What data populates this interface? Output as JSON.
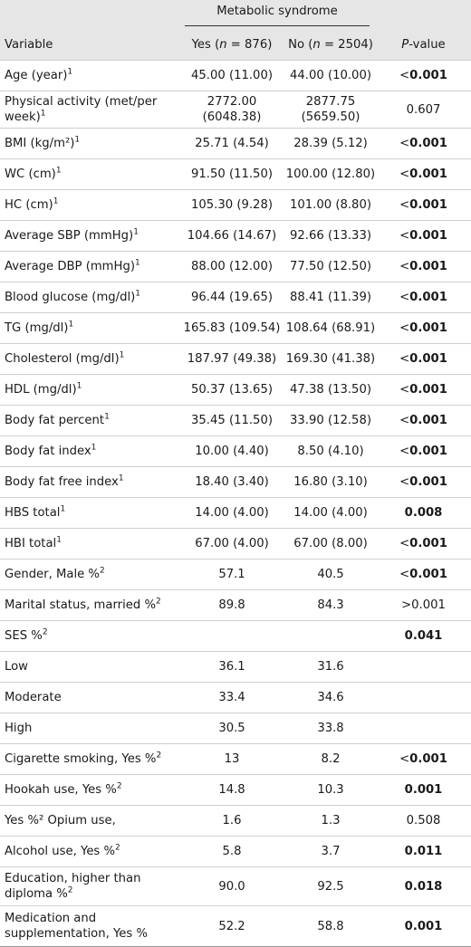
{
  "header": {
    "group_label": "Metabolic syndrome",
    "variable_label": "Variable",
    "yes_label_prefix": "Yes (",
    "yes_n_var": "n",
    "yes_label_suffix": " = 876)",
    "no_label_prefix": "No (",
    "no_n_var": "n",
    "no_label_suffix": " = 2504)",
    "p_italic": "P",
    "p_rest": "-value"
  },
  "rows": [
    {
      "label": "Age (year)",
      "sup": "1",
      "yes": "45.00 (11.00)",
      "no": "44.00 (10.00)",
      "p_sign": "<",
      "p_val": "0.001",
      "p_bold": true
    },
    {
      "label": "Physical activity (met/per week)",
      "sup": "1",
      "yes": "2772.00 (6048.38)",
      "no": "2877.75 (5659.50)",
      "p_sign": "",
      "p_val": "0.607",
      "p_bold": false
    },
    {
      "label": "BMI (kg/m²)",
      "sup": "1",
      "yes": "25.71 (4.54)",
      "no": "28.39 (5.12)",
      "p_sign": "<",
      "p_val": "0.001",
      "p_bold": true
    },
    {
      "label": "WC (cm)",
      "sup": "1",
      "yes": "91.50 (11.50)",
      "no": "100.00 (12.80)",
      "p_sign": "<",
      "p_val": "0.001",
      "p_bold": true
    },
    {
      "label": "HC (cm)",
      "sup": "1",
      "yes": "105.30 (9.28)",
      "no": "101.00 (8.80)",
      "p_sign": "<",
      "p_val": "0.001",
      "p_bold": true
    },
    {
      "label": "Average SBP (mmHg)",
      "sup": "1",
      "yes": "104.66 (14.67)",
      "no": "92.66 (13.33)",
      "p_sign": "<",
      "p_val": "0.001",
      "p_bold": true
    },
    {
      "label": "Average DBP (mmHg)",
      "sup": "1",
      "yes": "88.00 (12.00)",
      "no": "77.50 (12.50)",
      "p_sign": "<",
      "p_val": "0.001",
      "p_bold": true
    },
    {
      "label": "Blood glucose (mg/dl)",
      "sup": "1",
      "yes": "96.44 (19.65)",
      "no": "88.41 (11.39)",
      "p_sign": "<",
      "p_val": "0.001",
      "p_bold": true
    },
    {
      "label": "TG (mg/dl)",
      "sup": "1",
      "yes": "165.83 (109.54)",
      "no": "108.64 (68.91)",
      "p_sign": "<",
      "p_val": "0.001",
      "p_bold": true
    },
    {
      "label": "Cholesterol (mg/dl)",
      "sup": "1",
      "yes": "187.97 (49.38)",
      "no": "169.30 (41.38)",
      "p_sign": "<",
      "p_val": "0.001",
      "p_bold": true
    },
    {
      "label": "HDL (mg/dl)",
      "sup": "1",
      "yes": "50.37 (13.65)",
      "no": "47.38 (13.50)",
      "p_sign": "<",
      "p_val": "0.001",
      "p_bold": true
    },
    {
      "label": "Body fat percent",
      "sup": "1",
      "yes": "35.45 (11.50)",
      "no": "33.90 (12.58)",
      "p_sign": "<",
      "p_val": "0.001",
      "p_bold": true
    },
    {
      "label": "Body fat index",
      "sup": "1",
      "yes": "10.00 (4.40)",
      "no": "8.50 (4.10)",
      "p_sign": "<",
      "p_val": "0.001",
      "p_bold": true
    },
    {
      "label": "Body fat free index",
      "sup": "1",
      "yes": "18.40 (3.40)",
      "no": "16.80 (3.10)",
      "p_sign": "<",
      "p_val": "0.001",
      "p_bold": true
    },
    {
      "label": "HBS total",
      "sup": "1",
      "yes": "14.00 (4.00)",
      "no": "14.00 (4.00)",
      "p_sign": "",
      "p_val": "0.008",
      "p_bold": true
    },
    {
      "label": "HBI total",
      "sup": "1",
      "yes": "67.00 (4.00)",
      "no": "67.00 (8.00)",
      "p_sign": "<",
      "p_val": "0.001",
      "p_bold": true
    },
    {
      "label": "Gender, Male %",
      "sup": "2",
      "yes": "57.1",
      "no": "40.5",
      "p_sign": "<",
      "p_val": "0.001",
      "p_bold": true
    },
    {
      "label": "Marital status, married %",
      "sup": "2",
      "yes": "89.8",
      "no": "84.3",
      "p_sign": ">",
      "p_val": "0.001",
      "p_bold": false
    },
    {
      "label": "SES %",
      "sup": "2",
      "yes": "",
      "no": "",
      "p_sign": "",
      "p_val": "0.041",
      "p_bold": true
    },
    {
      "label": "Low",
      "sup": "",
      "yes": "36.1",
      "no": "31.6",
      "p_sign": "",
      "p_val": "",
      "p_bold": false
    },
    {
      "label": "Moderate",
      "sup": "",
      "yes": "33.4",
      "no": "34.6",
      "p_sign": "",
      "p_val": "",
      "p_bold": false
    },
    {
      "label": "High",
      "sup": "",
      "yes": "30.5",
      "no": "33.8",
      "p_sign": "",
      "p_val": "",
      "p_bold": false
    },
    {
      "label": "Cigarette smoking, Yes %",
      "sup": "2",
      "yes": "13",
      "no": "8.2",
      "p_sign": "<",
      "p_val": "0.001",
      "p_bold": true
    },
    {
      "label": "Hookah use, Yes %",
      "sup": "2",
      "yes": "14.8",
      "no": "10.3",
      "p_sign": "",
      "p_val": "0.001",
      "p_bold": true
    },
    {
      "label": "Yes %² Opium use,",
      "sup": "",
      "yes": "1.6",
      "no": "1.3",
      "p_sign": "",
      "p_val": "0.508",
      "p_bold": false
    },
    {
      "label": "Alcohol use, Yes %",
      "sup": "2",
      "yes": "5.8",
      "no": "3.7",
      "p_sign": "",
      "p_val": "0.011",
      "p_bold": true
    },
    {
      "label": "Education, higher than diploma %",
      "sup": "2",
      "yes": "90.0",
      "no": "92.5",
      "p_sign": "",
      "p_val": "0.018",
      "p_bold": true
    },
    {
      "label": "Medication and supplementation, Yes %",
      "sup": "",
      "yes": "52.2",
      "no": "58.8",
      "p_sign": "",
      "p_val": "0.001",
      "p_bold": true
    }
  ]
}
